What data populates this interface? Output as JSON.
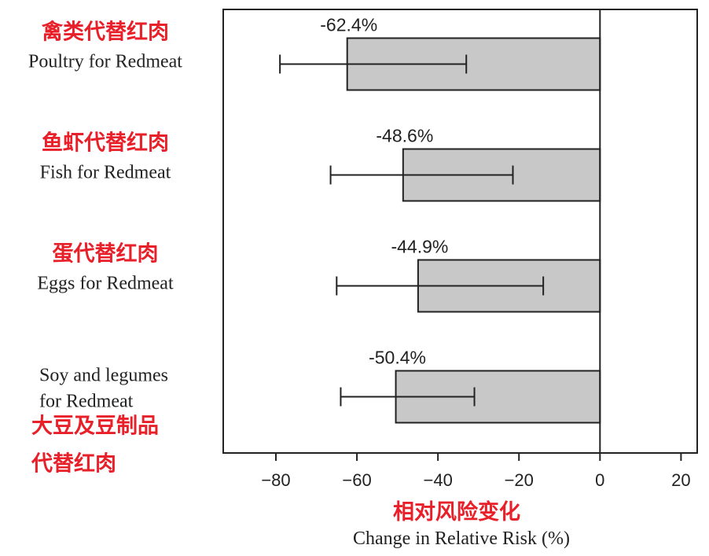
{
  "chart_data": {
    "type": "bar",
    "orientation": "horizontal",
    "categories": [
      {
        "label_cn": "禽类代替红肉",
        "label_en": [
          "Poultry for Redmeat"
        ]
      },
      {
        "label_cn": "鱼虾代替红肉",
        "label_en": [
          "Fish for Redmeat"
        ]
      },
      {
        "label_cn": "蛋代替红肉",
        "label_en": [
          "Eggs for Redmeat"
        ]
      },
      {
        "label_cn": [
          "大豆及豆制品",
          "代替红肉"
        ],
        "label_en": [
          "Soy and legumes",
          "for Redmeat"
        ]
      }
    ],
    "values": [
      -62.4,
      -48.6,
      -44.9,
      -50.4
    ],
    "value_labels": [
      "-62.4%",
      "-48.6%",
      "-44.9%",
      "-50.4%"
    ],
    "error_low": [
      -79,
      -66.5,
      -65,
      -64
    ],
    "error_high": [
      -33,
      -21.5,
      -14,
      -31
    ],
    "xlabel_cn": "相对风险变化",
    "xlabel_en": "Change in Relative Risk (%)",
    "xlim": [
      -93,
      24
    ],
    "xticks": [
      -80,
      -60,
      -40,
      -20,
      0,
      20
    ],
    "xtick_labels": [
      "−80",
      "−60",
      "−40",
      "−20",
      "0",
      "20"
    ],
    "bar_color": "#c8c8c8",
    "cn_label_color": "#e8202a",
    "grid": false
  }
}
